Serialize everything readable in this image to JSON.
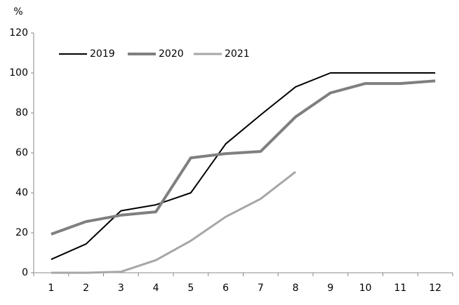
{
  "chart_data": {
    "type": "line",
    "y_unit": "%",
    "categories": [
      "1",
      "2",
      "3",
      "4",
      "5",
      "6",
      "7",
      "8",
      "9",
      "10",
      "11",
      "12"
    ],
    "series": [
      {
        "name": "2019",
        "color": "#000000",
        "values": [
          6.7,
          14.4,
          31,
          34,
          40,
          64.5,
          79,
          93,
          100,
          100,
          100,
          100
        ]
      },
      {
        "name": "2020",
        "color": "#7f7f7f",
        "values": [
          19.3,
          25.6,
          28.8,
          30.5,
          57.5,
          59.6,
          60.7,
          78,
          90,
          94.7,
          94.7,
          96
        ]
      },
      {
        "name": "2021",
        "color": "#a6a6a6",
        "values": [
          0,
          0,
          0.5,
          6.3,
          16,
          28,
          37,
          50.5,
          null,
          null,
          null,
          null
        ]
      }
    ],
    "ylim": [
      0,
      120
    ],
    "yticks": [
      0,
      20,
      40,
      60,
      80,
      100,
      120
    ],
    "grid": false
  }
}
